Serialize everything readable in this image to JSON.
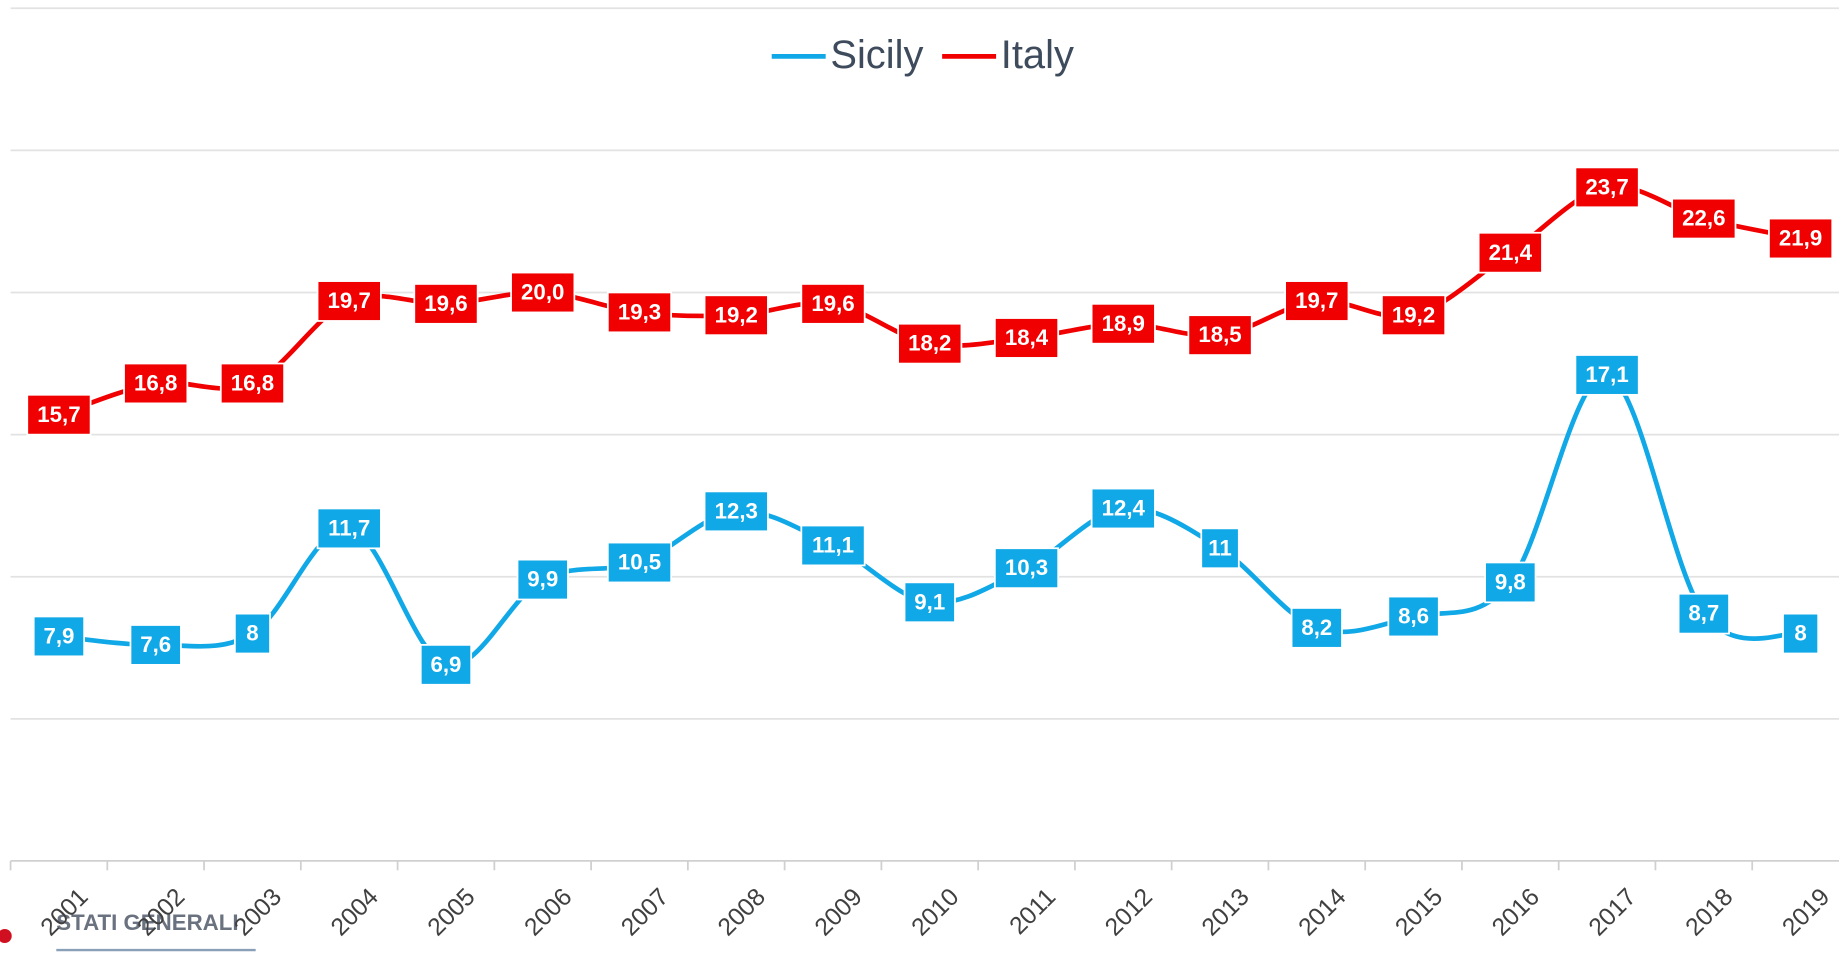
{
  "chart_data": {
    "type": "line",
    "categories": [
      "2001",
      "2002",
      "2003",
      "2004",
      "2005",
      "2006",
      "2007",
      "2008",
      "2009",
      "2010",
      "2011",
      "2012",
      "2013",
      "2014",
      "2015",
      "2016",
      "2017",
      "2018",
      "2019"
    ],
    "series": [
      {
        "name": "Sicily",
        "color": "#10a8e6",
        "values": [
          7.9,
          7.6,
          8,
          11.7,
          6.9,
          9.9,
          10.5,
          12.3,
          11.1,
          9.1,
          10.3,
          12.4,
          11,
          8.2,
          8.6,
          9.8,
          17.1,
          8.7,
          8
        ],
        "value_labels": [
          "7,9",
          "7,6",
          "8",
          "11,7",
          "6,9",
          "9,9",
          "10,5",
          "12,3",
          "11,1",
          "9,1",
          "10,3",
          "12,4",
          "11",
          "8,2",
          "8,6",
          "9,8",
          "17,1",
          "8,7",
          "8"
        ]
      },
      {
        "name": "Italy",
        "color": "#f00000",
        "values": [
          15.7,
          16.8,
          16.8,
          19.7,
          19.6,
          20.0,
          19.3,
          19.2,
          19.6,
          18.2,
          18.4,
          18.9,
          18.5,
          19.7,
          19.2,
          21.4,
          23.7,
          22.6,
          21.9
        ],
        "value_labels": [
          "15,7",
          "16,8",
          "16,8",
          "19,7",
          "19,6",
          "20,0",
          "19,3",
          "19,2",
          "19,6",
          "18,2",
          "18,4",
          "18,9",
          "18,5",
          "19,7",
          "19,2",
          "21,4",
          "23,7",
          "22,6",
          "21,9"
        ]
      }
    ],
    "ylim": [
      0,
      30
    ],
    "yticks": [
      0,
      5,
      10,
      15,
      20,
      25,
      30
    ],
    "grid": true,
    "smooth": true,
    "legend": "top",
    "watermark": "STATI GENERALI"
  }
}
